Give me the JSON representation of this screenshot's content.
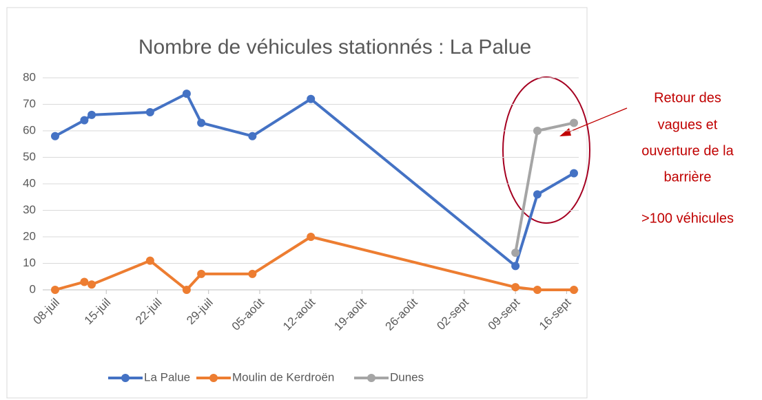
{
  "chart_data": {
    "type": "line",
    "title": "Nombre de véhicules stationnés : La Palue",
    "x": [
      189,
      193,
      194,
      202,
      207,
      209,
      216,
      224,
      252,
      255,
      260
    ],
    "series": [
      {
        "name": "La Palue",
        "color": "#4472c4",
        "values": [
          58,
          64,
          66,
          67,
          74,
          63,
          58,
          72,
          9,
          36,
          44
        ]
      },
      {
        "name": "Moulin de Kerdroën",
        "color": "#ed7d31",
        "values": [
          0,
          3,
          2,
          11,
          0,
          6,
          6,
          20,
          1,
          0,
          0
        ]
      },
      {
        "name": "Dunes",
        "color": "#a5a5a5",
        "values": [
          null,
          null,
          null,
          null,
          null,
          null,
          null,
          null,
          14,
          60,
          63
        ]
      }
    ],
    "xlim": [
      189,
      260
    ],
    "xticks": [
      {
        "value": 189,
        "label": "08-juil"
      },
      {
        "value": 196,
        "label": "15-juil"
      },
      {
        "value": 203,
        "label": "22-juil"
      },
      {
        "value": 210,
        "label": "29-juil"
      },
      {
        "value": 217,
        "label": "05-août"
      },
      {
        "value": 224,
        "label": "12-août"
      },
      {
        "value": 231,
        "label": "19-août"
      },
      {
        "value": 238,
        "label": "26-août"
      },
      {
        "value": 245,
        "label": "02-sept"
      },
      {
        "value": 252,
        "label": "09-sept"
      },
      {
        "value": 259,
        "label": "16-sept"
      }
    ],
    "ylim": [
      0,
      80
    ],
    "yticks": [
      0,
      10,
      20,
      30,
      40,
      50,
      60,
      70,
      80
    ],
    "grid": true,
    "legend": "bottom",
    "annotations": [
      "Retour des",
      "vagues et",
      "ouverture de la",
      "barrière",
      ">100 véhicules"
    ]
  }
}
